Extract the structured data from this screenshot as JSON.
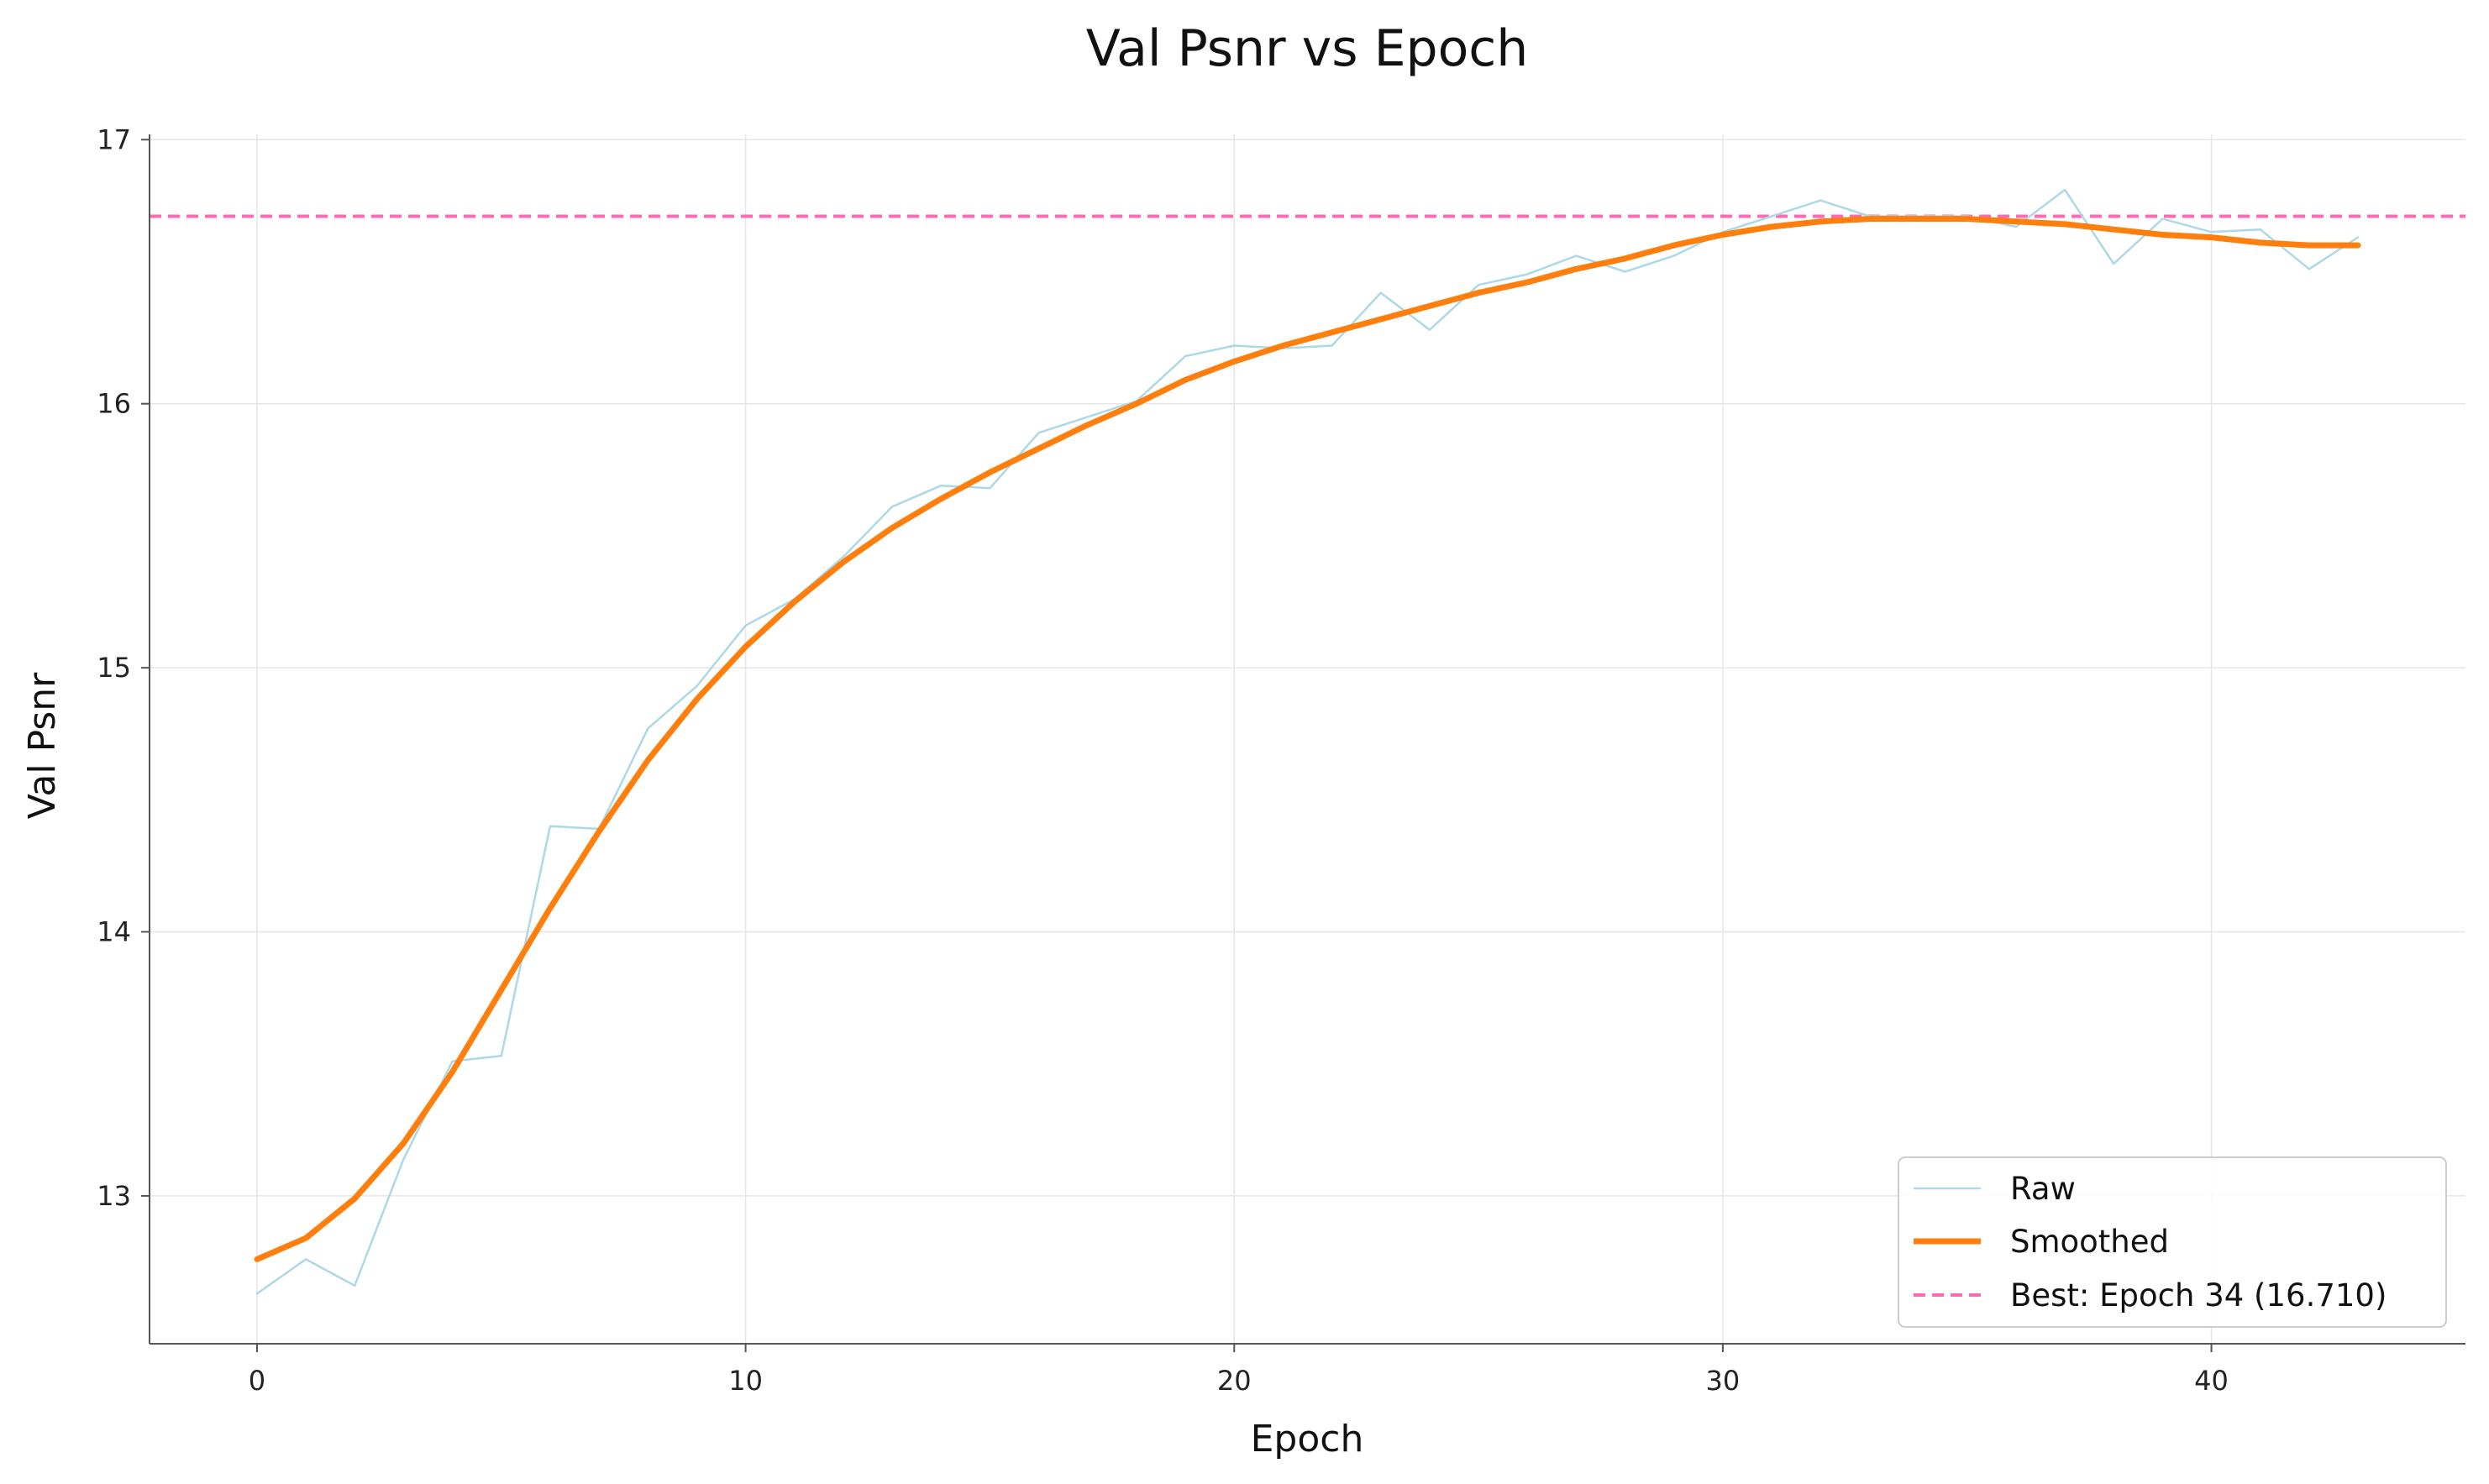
{
  "chart_data": {
    "type": "line",
    "title": "Val Psnr vs Epoch",
    "xlabel": "Epoch",
    "ylabel": "Val Psnr",
    "xlim": [
      -2.2,
      45.2
    ],
    "ylim": [
      12.44,
      17.02
    ],
    "xticks": [
      0,
      10,
      20,
      30,
      40
    ],
    "yticks": [
      13,
      14,
      15,
      16,
      17
    ],
    "grid": true,
    "legend_position": "lower-right",
    "series": [
      {
        "name": "Raw",
        "color": "#add8e6",
        "style": "solid-thin",
        "x": [
          0,
          1,
          2,
          3,
          4,
          5,
          6,
          7,
          8,
          9,
          10,
          11,
          12,
          13,
          14,
          15,
          16,
          17,
          18,
          19,
          20,
          21,
          22,
          23,
          24,
          25,
          26,
          27,
          28,
          29,
          30,
          31,
          32,
          33,
          34,
          35,
          36,
          37,
          38,
          39,
          40,
          41,
          42,
          43
        ],
        "y": [
          12.63,
          12.76,
          12.66,
          13.14,
          13.51,
          13.53,
          14.4,
          14.39,
          14.77,
          14.93,
          15.16,
          15.26,
          15.42,
          15.61,
          15.69,
          15.68,
          15.89,
          15.95,
          16.01,
          16.18,
          16.22,
          16.21,
          16.22,
          16.42,
          16.28,
          16.45,
          16.49,
          16.56,
          16.5,
          16.56,
          16.65,
          16.71,
          16.77,
          16.71,
          16.71,
          16.71,
          16.67,
          16.81,
          16.53,
          16.7,
          16.65,
          16.66,
          16.51,
          16.63
        ]
      },
      {
        "name": "Smoothed",
        "color": "#ff7f0e",
        "style": "solid-thick",
        "x": [
          0,
          1,
          2,
          3,
          4,
          5,
          6,
          7,
          8,
          9,
          10,
          11,
          12,
          13,
          14,
          15,
          16,
          17,
          18,
          19,
          20,
          21,
          22,
          23,
          24,
          25,
          26,
          27,
          28,
          29,
          30,
          31,
          32,
          33,
          34,
          35,
          36,
          37,
          38,
          39,
          40,
          41,
          42,
          43
        ],
        "y": [
          12.76,
          12.84,
          12.99,
          13.2,
          13.47,
          13.78,
          14.09,
          14.38,
          14.65,
          14.88,
          15.08,
          15.25,
          15.4,
          15.53,
          15.64,
          15.74,
          15.83,
          15.92,
          16.0,
          16.09,
          16.16,
          16.22,
          16.27,
          16.32,
          16.37,
          16.42,
          16.46,
          16.51,
          16.55,
          16.6,
          16.64,
          16.67,
          16.69,
          16.7,
          16.7,
          16.7,
          16.69,
          16.68,
          16.66,
          16.64,
          16.63,
          16.61,
          16.6,
          16.6
        ]
      }
    ],
    "reference_line": {
      "name": "Best: Epoch 34 (16.710)",
      "y": 16.71,
      "color": "#ff69b4",
      "style": "dashed"
    }
  }
}
